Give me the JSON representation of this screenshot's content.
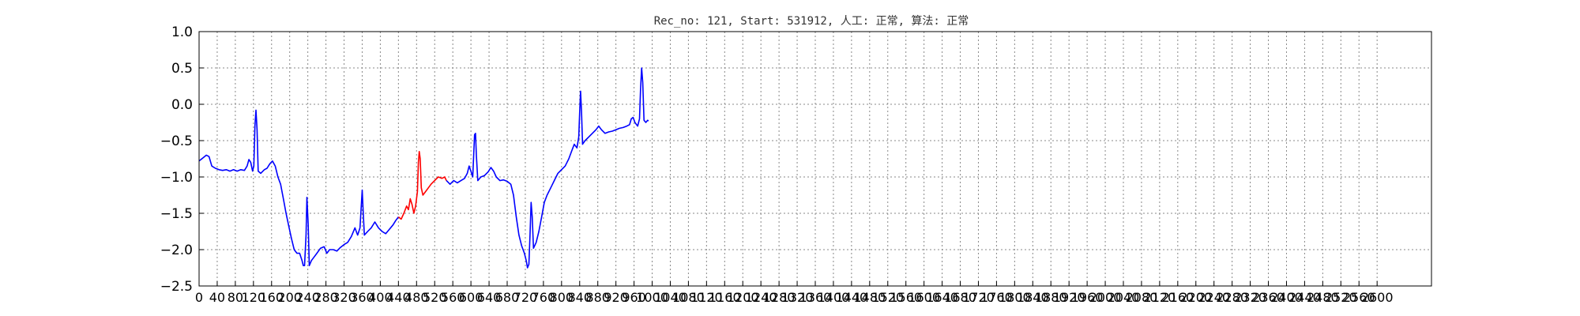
{
  "chart_data": {
    "type": "line",
    "title": "Rec_no: 121, Start: 531912, 人工: 正常, 算法: 正常",
    "xlabel": "",
    "ylabel": "",
    "xlim": [
      0,
      6800
    ],
    "ylim": [
      -2.5,
      1.0
    ],
    "grid": true,
    "yticks": [
      "1.0",
      "0.5",
      "0.0",
      "−0.5",
      "−1.0",
      "−1.5",
      "−2.0",
      "−2.5"
    ],
    "ytick_values": [
      1.0,
      0.5,
      0.0,
      -0.5,
      -1.0,
      -1.5,
      -2.0,
      -2.5
    ],
    "xtick_labels": [
      "0",
      "40",
      "80",
      "120",
      "160",
      "200",
      "240",
      "280",
      "320",
      "360",
      "400",
      "440",
      "480",
      "520",
      "560",
      "600",
      "640",
      "680",
      "720",
      "760",
      "800",
      "840",
      "880",
      "920",
      "960",
      "1000",
      "1040",
      "1080",
      "1120",
      "1160",
      "1200",
      "1240",
      "1280",
      "1320",
      "1360",
      "1400",
      "1440",
      "1480",
      "1520",
      "1560",
      "1600",
      "1640",
      "1680",
      "1720",
      "1760",
      "1800",
      "1840",
      "1880",
      "1920",
      "1960",
      "2000",
      "2040",
      "2080",
      "2120",
      "2160",
      "2200",
      "2240",
      "2280",
      "2320",
      "2360",
      "2400",
      "2440",
      "2480",
      "2520",
      "2560",
      "2600"
    ],
    "series": [
      {
        "color": "#0000ff",
        "points": [
          [
            0,
            -0.78
          ],
          [
            20,
            -0.74
          ],
          [
            40,
            -0.7
          ],
          [
            55,
            -0.72
          ],
          [
            70,
            -0.85
          ],
          [
            90,
            -0.88
          ],
          [
            110,
            -0.9
          ],
          [
            130,
            -0.91
          ],
          [
            150,
            -0.9
          ],
          [
            170,
            -0.92
          ],
          [
            190,
            -0.9
          ],
          [
            210,
            -0.92
          ],
          [
            230,
            -0.9
          ],
          [
            250,
            -0.91
          ],
          [
            265,
            -0.85
          ],
          [
            275,
            -0.76
          ],
          [
            285,
            -0.8
          ],
          [
            295,
            -0.92
          ],
          [
            302,
            -0.85
          ],
          [
            308,
            -0.3
          ],
          [
            314,
            -0.08
          ],
          [
            320,
            -0.35
          ],
          [
            326,
            -0.92
          ],
          [
            340,
            -0.95
          ],
          [
            360,
            -0.9
          ],
          [
            375,
            -0.88
          ],
          [
            390,
            -0.82
          ],
          [
            405,
            -0.78
          ],
          [
            420,
            -0.85
          ],
          [
            435,
            -1.0
          ],
          [
            450,
            -1.1
          ],
          [
            465,
            -1.3
          ],
          [
            480,
            -1.5
          ],
          [
            495,
            -1.68
          ],
          [
            510,
            -1.85
          ],
          [
            525,
            -2.0
          ],
          [
            540,
            -2.05
          ],
          [
            555,
            -2.05
          ],
          [
            568,
            -2.15
          ],
          [
            575,
            -2.22
          ],
          [
            582,
            -2.22
          ],
          [
            590,
            -1.8
          ],
          [
            595,
            -1.28
          ],
          [
            602,
            -1.65
          ],
          [
            608,
            -2.22
          ],
          [
            620,
            -2.15
          ],
          [
            635,
            -2.1
          ],
          [
            650,
            -2.05
          ],
          [
            670,
            -1.98
          ],
          [
            690,
            -1.96
          ],
          [
            705,
            -2.05
          ],
          [
            720,
            -2.0
          ],
          [
            740,
            -2.0
          ],
          [
            760,
            -2.02
          ],
          [
            780,
            -1.97
          ],
          [
            800,
            -1.93
          ],
          [
            820,
            -1.9
          ],
          [
            840,
            -1.82
          ],
          [
            860,
            -1.7
          ],
          [
            875,
            -1.8
          ],
          [
            888,
            -1.7
          ],
          [
            895,
            -1.4
          ],
          [
            900,
            -1.18
          ],
          [
            905,
            -1.45
          ],
          [
            912,
            -1.8
          ],
          [
            930,
            -1.75
          ],
          [
            950,
            -1.7
          ],
          [
            970,
            -1.62
          ],
          [
            990,
            -1.7
          ],
          [
            1010,
            -1.75
          ],
          [
            1030,
            -1.78
          ],
          [
            1050,
            -1.72
          ],
          [
            1070,
            -1.66
          ],
          [
            1085,
            -1.6
          ],
          [
            1100,
            -1.55
          ]
        ]
      },
      {
        "color": "#ff0000",
        "points": [
          [
            1100,
            -1.55
          ],
          [
            1115,
            -1.58
          ],
          [
            1130,
            -1.5
          ],
          [
            1145,
            -1.4
          ],
          [
            1155,
            -1.45
          ],
          [
            1165,
            -1.3
          ],
          [
            1175,
            -1.38
          ],
          [
            1185,
            -1.5
          ],
          [
            1195,
            -1.4
          ],
          [
            1205,
            -1.2
          ],
          [
            1210,
            -0.8
          ],
          [
            1215,
            -0.65
          ],
          [
            1220,
            -0.75
          ],
          [
            1226,
            -1.15
          ],
          [
            1235,
            -1.25
          ],
          [
            1250,
            -1.2
          ],
          [
            1265,
            -1.15
          ],
          [
            1280,
            -1.1
          ],
          [
            1300,
            -1.05
          ],
          [
            1320,
            -1.0
          ],
          [
            1340,
            -1.02
          ],
          [
            1355,
            -1.0
          ],
          [
            1365,
            -1.05
          ]
        ]
      },
      {
        "color": "#0000ff",
        "points": [
          [
            1365,
            -1.05
          ],
          [
            1385,
            -1.1
          ],
          [
            1405,
            -1.05
          ],
          [
            1425,
            -1.08
          ],
          [
            1445,
            -1.05
          ],
          [
            1465,
            -1.02
          ],
          [
            1480,
            -0.95
          ],
          [
            1490,
            -0.85
          ],
          [
            1500,
            -0.92
          ],
          [
            1510,
            -1.0
          ],
          [
            1515,
            -0.7
          ],
          [
            1520,
            -0.42
          ],
          [
            1525,
            -0.4
          ],
          [
            1530,
            -0.7
          ],
          [
            1538,
            -1.05
          ],
          [
            1555,
            -1.0
          ],
          [
            1575,
            -0.98
          ],
          [
            1595,
            -0.93
          ],
          [
            1610,
            -0.87
          ],
          [
            1625,
            -0.92
          ],
          [
            1640,
            -1.0
          ],
          [
            1660,
            -1.05
          ],
          [
            1680,
            -1.04
          ],
          [
            1700,
            -1.06
          ],
          [
            1720,
            -1.1
          ],
          [
            1735,
            -1.25
          ],
          [
            1750,
            -1.55
          ],
          [
            1765,
            -1.8
          ],
          [
            1780,
            -1.95
          ],
          [
            1795,
            -2.05
          ],
          [
            1805,
            -2.15
          ],
          [
            1812,
            -2.25
          ],
          [
            1820,
            -2.2
          ],
          [
            1826,
            -1.8
          ],
          [
            1832,
            -1.35
          ],
          [
            1838,
            -1.55
          ],
          [
            1845,
            -1.98
          ],
          [
            1860,
            -1.9
          ],
          [
            1875,
            -1.75
          ],
          [
            1890,
            -1.55
          ],
          [
            1905,
            -1.35
          ],
          [
            1920,
            -1.25
          ],
          [
            1940,
            -1.15
          ],
          [
            1960,
            -1.05
          ],
          [
            1980,
            -0.95
          ],
          [
            2000,
            -0.9
          ],
          [
            2020,
            -0.85
          ],
          [
            2040,
            -0.75
          ],
          [
            2055,
            -0.65
          ],
          [
            2070,
            -0.55
          ],
          [
            2085,
            -0.6
          ],
          [
            2095,
            -0.45
          ],
          [
            2100,
            -0.1
          ],
          [
            2105,
            0.18
          ],
          [
            2110,
            -0.1
          ],
          [
            2116,
            -0.55
          ],
          [
            2130,
            -0.5
          ],
          [
            2150,
            -0.45
          ],
          [
            2170,
            -0.4
          ],
          [
            2190,
            -0.35
          ],
          [
            2205,
            -0.3
          ],
          [
            2220,
            -0.35
          ],
          [
            2240,
            -0.4
          ],
          [
            2260,
            -0.38
          ],
          [
            2280,
            -0.37
          ],
          [
            2300,
            -0.35
          ],
          [
            2320,
            -0.33
          ],
          [
            2340,
            -0.32
          ],
          [
            2360,
            -0.3
          ],
          [
            2375,
            -0.28
          ],
          [
            2385,
            -0.2
          ],
          [
            2395,
            -0.18
          ],
          [
            2405,
            -0.25
          ],
          [
            2420,
            -0.3
          ],
          [
            2430,
            -0.2
          ],
          [
            2436,
            0.2
          ],
          [
            2442,
            0.5
          ],
          [
            2448,
            0.3
          ],
          [
            2455,
            -0.22
          ],
          [
            2465,
            -0.25
          ],
          [
            2475,
            -0.22
          ],
          [
            2480,
            -0.23
          ]
        ]
      }
    ]
  }
}
